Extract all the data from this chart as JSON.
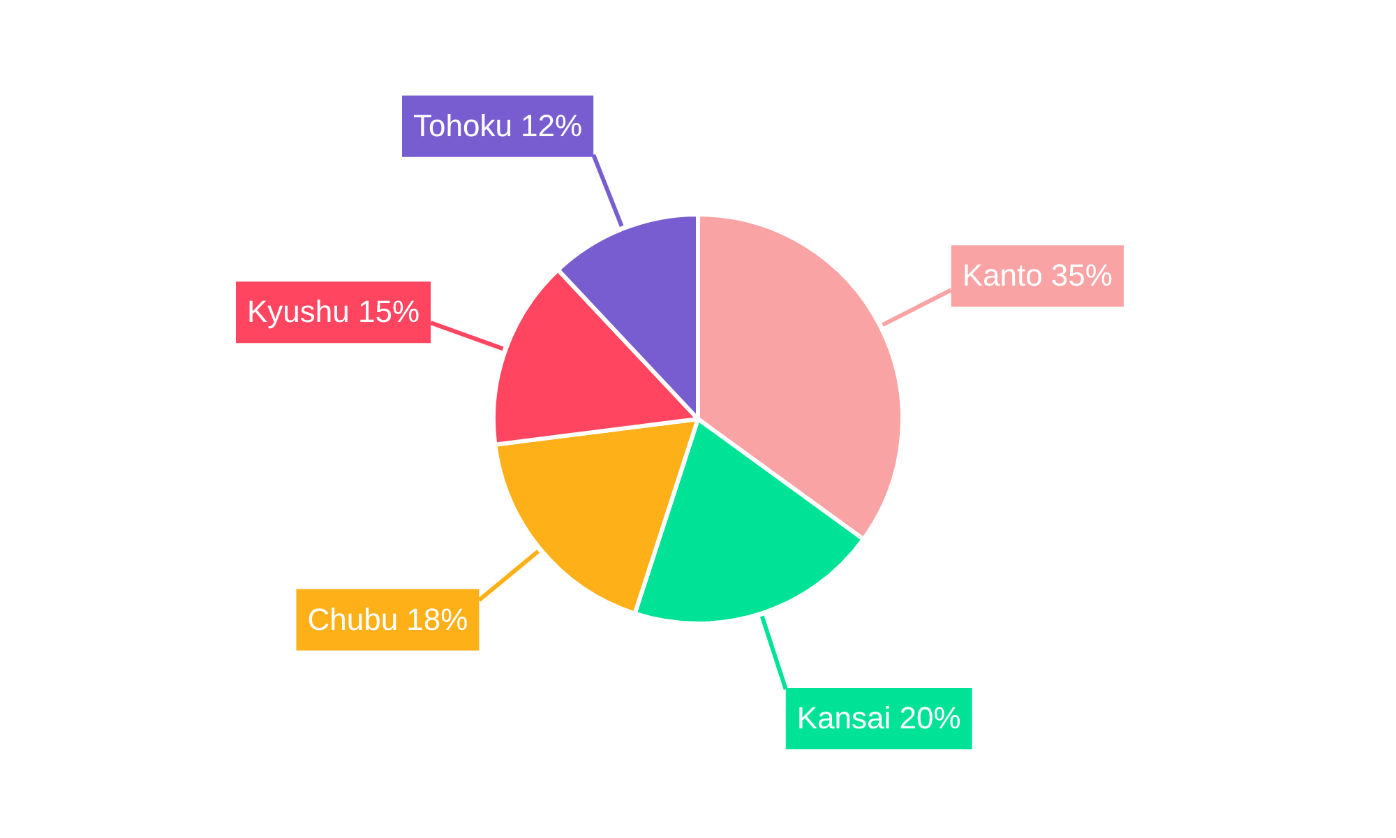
{
  "chart_data": {
    "type": "pie",
    "categories": [
      "Kanto",
      "Kansai",
      "Chubu",
      "Kyushu",
      "Tohoku"
    ],
    "values": [
      35,
      20,
      18,
      15,
      12
    ],
    "colors": [
      "#f9a3a4",
      "#00e396",
      "#feb019",
      "#ff4560",
      "#775dd0"
    ],
    "value_labels": [
      "35%",
      "20%",
      "18%",
      "15%",
      "12%"
    ]
  }
}
